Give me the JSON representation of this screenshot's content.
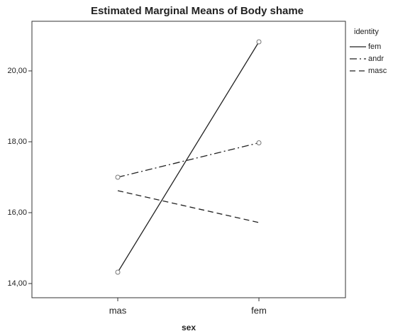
{
  "chart_data": {
    "type": "line",
    "title": "Estimated Marginal Means of Body shame",
    "x_label": "sex",
    "categories": [
      "mas",
      "fem"
    ],
    "legend_title": "identity",
    "legend_position": "right",
    "series": [
      {
        "name": "fem",
        "color": "#222222",
        "dash": "solid",
        "marker": true,
        "values": [
          14.32,
          20.82
        ]
      },
      {
        "name": "andr",
        "color": "#222222",
        "dash": "dashdot",
        "marker": true,
        "values": [
          17.0,
          17.97
        ]
      },
      {
        "name": "masc",
        "color": "#222222",
        "dash": "dashed",
        "marker": false,
        "values": [
          16.62,
          15.72
        ]
      }
    ],
    "ylim": [
      13.6,
      21.4
    ],
    "yticks": [
      {
        "value": 14,
        "label": "14,00"
      },
      {
        "value": 16,
        "label": "16,00"
      },
      {
        "value": 18,
        "label": "18,00"
      },
      {
        "value": 20,
        "label": "20,00"
      }
    ],
    "grid": false
  }
}
